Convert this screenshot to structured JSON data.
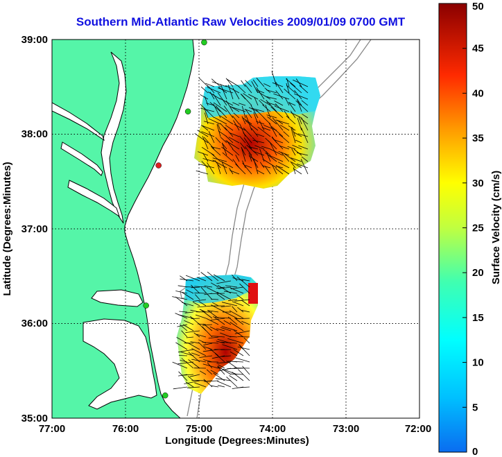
{
  "title": "Southern Mid-Atlantic Raw Velocities 2009/01/09 0700 GMT",
  "map": {
    "xlabel": "Longitude (Degrees:Minutes)",
    "ylabel": "Latitude (Degrees:Minutes)",
    "lon_ticks": [
      "77:00",
      "76:00",
      "75:00",
      "74:00",
      "73:00",
      "72:00"
    ],
    "lat_ticks": [
      "39:00",
      "38:00",
      "37:00",
      "36:00",
      "35:00"
    ],
    "lon_range": [
      -77,
      -72
    ],
    "lat_range": [
      35,
      39
    ],
    "grid": "dotted",
    "land_color": "#55f5a8",
    "water_color": "#ffffff",
    "coast_color": "#000000",
    "bathymetry_color": "#888888",
    "stations": [
      {
        "lon": -74.93,
        "lat": 38.97,
        "color": "#22cc22"
      },
      {
        "lon": -75.15,
        "lat": 38.24,
        "color": "#22cc22"
      },
      {
        "lon": -75.55,
        "lat": 37.67,
        "color": "#e02020"
      },
      {
        "lon": -75.72,
        "lat": 36.19,
        "color": "#22cc22"
      },
      {
        "lon": -75.46,
        "lat": 35.24,
        "color": "#22cc22"
      }
    ]
  },
  "colorbar": {
    "label": "Surface Velocity (cm/s)",
    "ticks": [
      "50",
      "45",
      "40",
      "35",
      "30",
      "25",
      "20",
      "15",
      "10",
      "5",
      "0"
    ],
    "min": 0,
    "max": 50,
    "colormap": "jet"
  }
}
